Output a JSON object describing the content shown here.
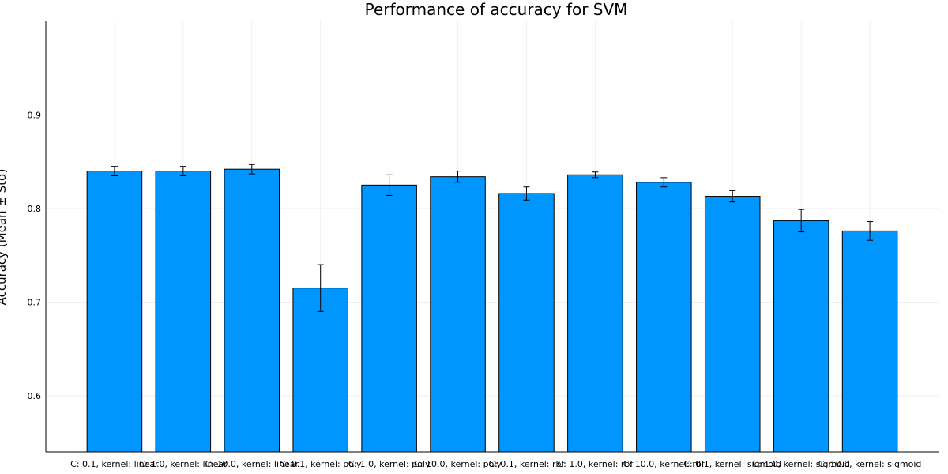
{
  "chart_data": {
    "type": "bar",
    "title": "Performance of accuracy for SVM",
    "xlabel": "",
    "ylabel": "Accuracy (Mean ± Std)",
    "ylim": [
      0.54,
      1.0
    ],
    "yticks": [
      0.6,
      0.7,
      0.8,
      0.9
    ],
    "grid": true,
    "legend": "none",
    "bar_color": "#0096FF",
    "categories": [
      "C: 0.1, kernel: linear",
      "C: 1.0, kernel: linear",
      "C: 10.0, kernel: linear",
      "C: 0.1, kernel: poly",
      "C: 1.0, kernel: poly",
      "C: 10.0, kernel: poly",
      "C: 0.1, kernel: rbf",
      "C: 1.0, kernel: rbf",
      "C: 10.0, kernel: rbf",
      "C: 0.1, kernel: sigmoid",
      "C: 1.0, kernel: sigmoid",
      "C: 10.0, kernel: sigmoid"
    ],
    "values": [
      0.84,
      0.84,
      0.842,
      0.715,
      0.825,
      0.834,
      0.816,
      0.836,
      0.828,
      0.813,
      0.787,
      0.776
    ],
    "errors": [
      0.005,
      0.005,
      0.005,
      0.025,
      0.011,
      0.006,
      0.007,
      0.003,
      0.005,
      0.006,
      0.012,
      0.01
    ]
  }
}
